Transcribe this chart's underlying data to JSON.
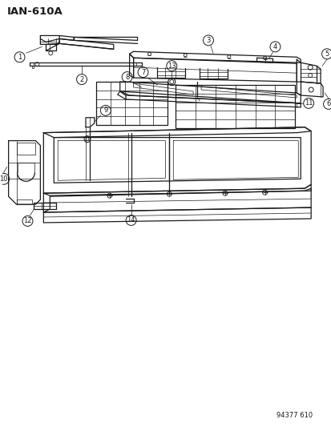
{
  "title": "IAN-610A",
  "footer": "94377 610",
  "bg_color": "#ffffff",
  "line_color": "#1a1a1a",
  "figsize": [
    4.14,
    5.33
  ],
  "dpi": 100
}
